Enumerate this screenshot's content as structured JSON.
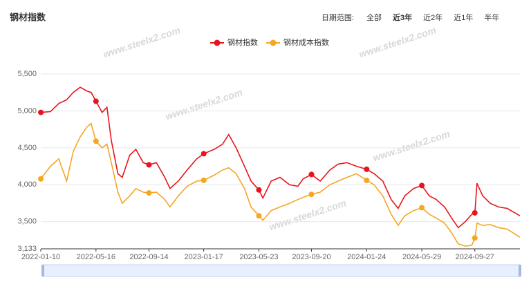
{
  "chart_data": {
    "type": "line",
    "title": "钢材指数",
    "range_label": "日期范围:",
    "range_options": [
      "全部",
      "近3年",
      "近2年",
      "近1年",
      "半年"
    ],
    "range_active": 1,
    "watermark": "www.steelx2.com",
    "legend": "top",
    "x": [
      "2022-01-10",
      "2022-02-01",
      "2022-02-20",
      "2022-03-10",
      "2022-03-25",
      "2022-04-10",
      "2022-04-25",
      "2022-05-05",
      "2022-05-16",
      "2022-05-30",
      "2022-06-10",
      "2022-06-20",
      "2022-07-05",
      "2022-07-15",
      "2022-08-01",
      "2022-08-15",
      "2022-09-01",
      "2022-09-14",
      "2022-10-01",
      "2022-10-20",
      "2022-11-01",
      "2022-11-20",
      "2022-12-10",
      "2023-01-01",
      "2023-01-17",
      "2023-02-10",
      "2023-03-01",
      "2023-03-15",
      "2023-04-01",
      "2023-04-20",
      "2023-05-05",
      "2023-05-23",
      "2023-06-01",
      "2023-06-20",
      "2023-07-10",
      "2023-08-01",
      "2023-08-20",
      "2023-09-01",
      "2023-09-20",
      "2023-10-10",
      "2023-11-01",
      "2023-11-20",
      "2023-12-10",
      "2024-01-01",
      "2024-01-24",
      "2024-02-10",
      "2024-03-01",
      "2024-03-20",
      "2024-04-05",
      "2024-04-20",
      "2024-05-10",
      "2024-05-29",
      "2024-06-15",
      "2024-07-01",
      "2024-07-20",
      "2024-08-05",
      "2024-08-20",
      "2024-09-05",
      "2024-09-20",
      "2024-09-27",
      "2024-10-02",
      "2024-10-15",
      "2024-11-01",
      "2024-11-20",
      "2024-12-10",
      "2025-01-08"
    ],
    "series": [
      {
        "name": "钢材指数",
        "color": "#e8141b",
        "values": [
          4980,
          4990,
          5100,
          5150,
          5250,
          5320,
          5270,
          5250,
          5130,
          4980,
          5050,
          4600,
          4150,
          4100,
          4400,
          4480,
          4300,
          4270,
          4300,
          4100,
          3950,
          4050,
          4200,
          4350,
          4420,
          4480,
          4550,
          4680,
          4500,
          4250,
          4050,
          3930,
          3820,
          4050,
          4100,
          4000,
          3980,
          4080,
          4140,
          4050,
          4200,
          4280,
          4300,
          4250,
          4210,
          4150,
          4050,
          3800,
          3680,
          3850,
          3950,
          3990,
          3850,
          3800,
          3700,
          3550,
          3420,
          3500,
          3600,
          3620,
          4020,
          3850,
          3750,
          3700,
          3680,
          3580
        ]
      },
      {
        "name": "钢材成本指数",
        "color": "#f5a623",
        "values": [
          4080,
          4250,
          4350,
          4050,
          4450,
          4650,
          4780,
          4830,
          4590,
          4500,
          4550,
          4300,
          3900,
          3750,
          3850,
          3950,
          3900,
          3890,
          3900,
          3800,
          3700,
          3850,
          3980,
          4050,
          4060,
          4130,
          4200,
          4230,
          4150,
          3950,
          3700,
          3580,
          3520,
          3650,
          3700,
          3750,
          3800,
          3830,
          3870,
          3900,
          4000,
          4050,
          4100,
          4150,
          4060,
          4000,
          3850,
          3600,
          3450,
          3580,
          3650,
          3690,
          3600,
          3550,
          3480,
          3350,
          3200,
          3170,
          3180,
          3280,
          3480,
          3450,
          3460,
          3420,
          3400,
          3290
        ]
      }
    ],
    "xlim": [
      "2022-01-10",
      "2025-01-08"
    ],
    "xticks": [
      "2022-01-10",
      "2022-05-16",
      "2022-09-14",
      "2023-01-17",
      "2023-05-23",
      "2023-09-20",
      "2024-01-24",
      "2024-05-29",
      "2024-09-27"
    ],
    "ylim": [
      3133,
      5500
    ],
    "yticks": [
      {
        "value": 3133,
        "label": "3,133"
      },
      {
        "value": 3500,
        "label": "3,500"
      },
      {
        "value": 4000,
        "label": "4,000"
      },
      {
        "value": 4500,
        "label": "4,500"
      },
      {
        "value": 5000,
        "label": "5,000"
      },
      {
        "value": 5500,
        "label": "5,500"
      }
    ],
    "grid": true
  }
}
